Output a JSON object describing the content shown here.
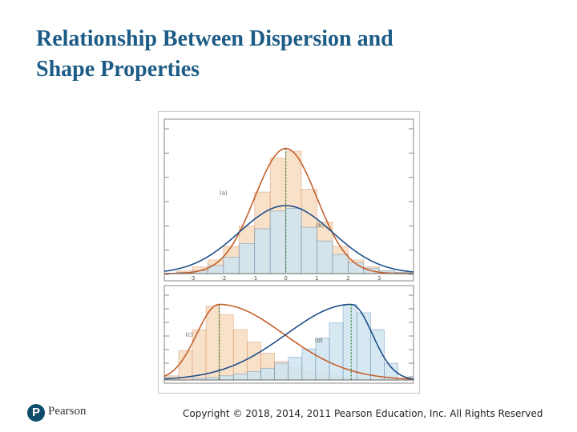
{
  "slide": {
    "title_line1": "Relationship Between Dispersion and",
    "title_line2": "Shape Properties"
  },
  "footer": {
    "logo_letter": "P",
    "logo_text": "Pearson",
    "copyright": "Copyright © 2018, 2014, 2011 Pearson Education, Inc. All Rights Reserved"
  },
  "colors": {
    "orange_fill": "#f7dcc0",
    "orange_line": "#c4602a",
    "blue_fill": "#cfe4f0",
    "blue_line": "#1d4f8a",
    "mean_line": "#2e7d32"
  },
  "chart_data": [
    {
      "type": "bar",
      "panel": "top",
      "xlim": [
        -3.9,
        4.1
      ],
      "x_ticks": [
        "-3",
        "-2",
        "-1",
        "0",
        "1",
        "2",
        "3"
      ],
      "bin_width": 0.5,
      "series": [
        {
          "name": "(a)",
          "color": "orange",
          "bin_centers": [
            -3.25,
            -2.75,
            -2.25,
            -1.75,
            -1.25,
            -0.75,
            -0.25,
            0.25,
            0.75,
            1.25,
            1.75,
            2.25,
            2.75,
            3.25,
            3.75
          ],
          "values": [
            0.02,
            0.05,
            0.1,
            0.2,
            0.35,
            0.6,
            0.85,
            0.9,
            0.62,
            0.38,
            0.2,
            0.1,
            0.05,
            0.02,
            0.01
          ],
          "curve": {
            "kind": "normal",
            "mean": 0,
            "sd": 1,
            "peak": 0.92
          },
          "mean_marker": 0
        },
        {
          "name": "(b)",
          "color": "blue",
          "bin_centers": [
            -3.25,
            -2.75,
            -2.25,
            -1.75,
            -1.25,
            -0.75,
            -0.25,
            0.25,
            0.75,
            1.25,
            1.75,
            2.25,
            2.75,
            3.25,
            3.75
          ],
          "values": [
            0.01,
            0.02,
            0.06,
            0.12,
            0.22,
            0.33,
            0.46,
            0.48,
            0.34,
            0.24,
            0.14,
            0.08,
            0.04,
            0.02,
            0.01
          ],
          "curve": {
            "kind": "normal",
            "mean": 0,
            "sd": 1.5,
            "peak": 0.5
          }
        }
      ],
      "annotations": [
        "(a)",
        "(b)"
      ]
    },
    {
      "type": "bar",
      "panel": "bottom",
      "xlim": [
        0,
        10
      ],
      "bin_width": 0.55,
      "series": [
        {
          "name": "(c)",
          "color": "orange",
          "bin_centers": [
            0.3,
            0.85,
            1.4,
            1.95,
            2.5,
            3.05,
            3.6,
            4.15,
            4.7,
            5.25,
            5.8,
            6.35,
            6.9,
            7.45,
            8.0,
            8.55
          ],
          "values": [
            0.05,
            0.35,
            0.6,
            0.88,
            0.78,
            0.6,
            0.45,
            0.32,
            0.22,
            0.15,
            0.1,
            0.07,
            0.05,
            0.03,
            0.02,
            0.01
          ],
          "curve": {
            "kind": "right-skewed",
            "mode": 2.2,
            "peak": 0.9
          },
          "mean_marker": 2.2
        },
        {
          "name": "(d)",
          "color": "blue",
          "bin_centers": [
            1.4,
            1.95,
            2.5,
            3.05,
            3.6,
            4.15,
            4.7,
            5.25,
            5.8,
            6.35,
            6.9,
            7.45,
            8.0,
            8.55,
            9.1
          ],
          "values": [
            0.02,
            0.03,
            0.05,
            0.07,
            0.1,
            0.14,
            0.2,
            0.27,
            0.37,
            0.5,
            0.68,
            0.9,
            0.8,
            0.6,
            0.2
          ],
          "curve": {
            "kind": "left-skewed",
            "mode": 7.5,
            "peak": 0.9
          },
          "mean_marker": 7.5
        }
      ],
      "annotations": [
        "(c)",
        "(d)"
      ]
    }
  ]
}
